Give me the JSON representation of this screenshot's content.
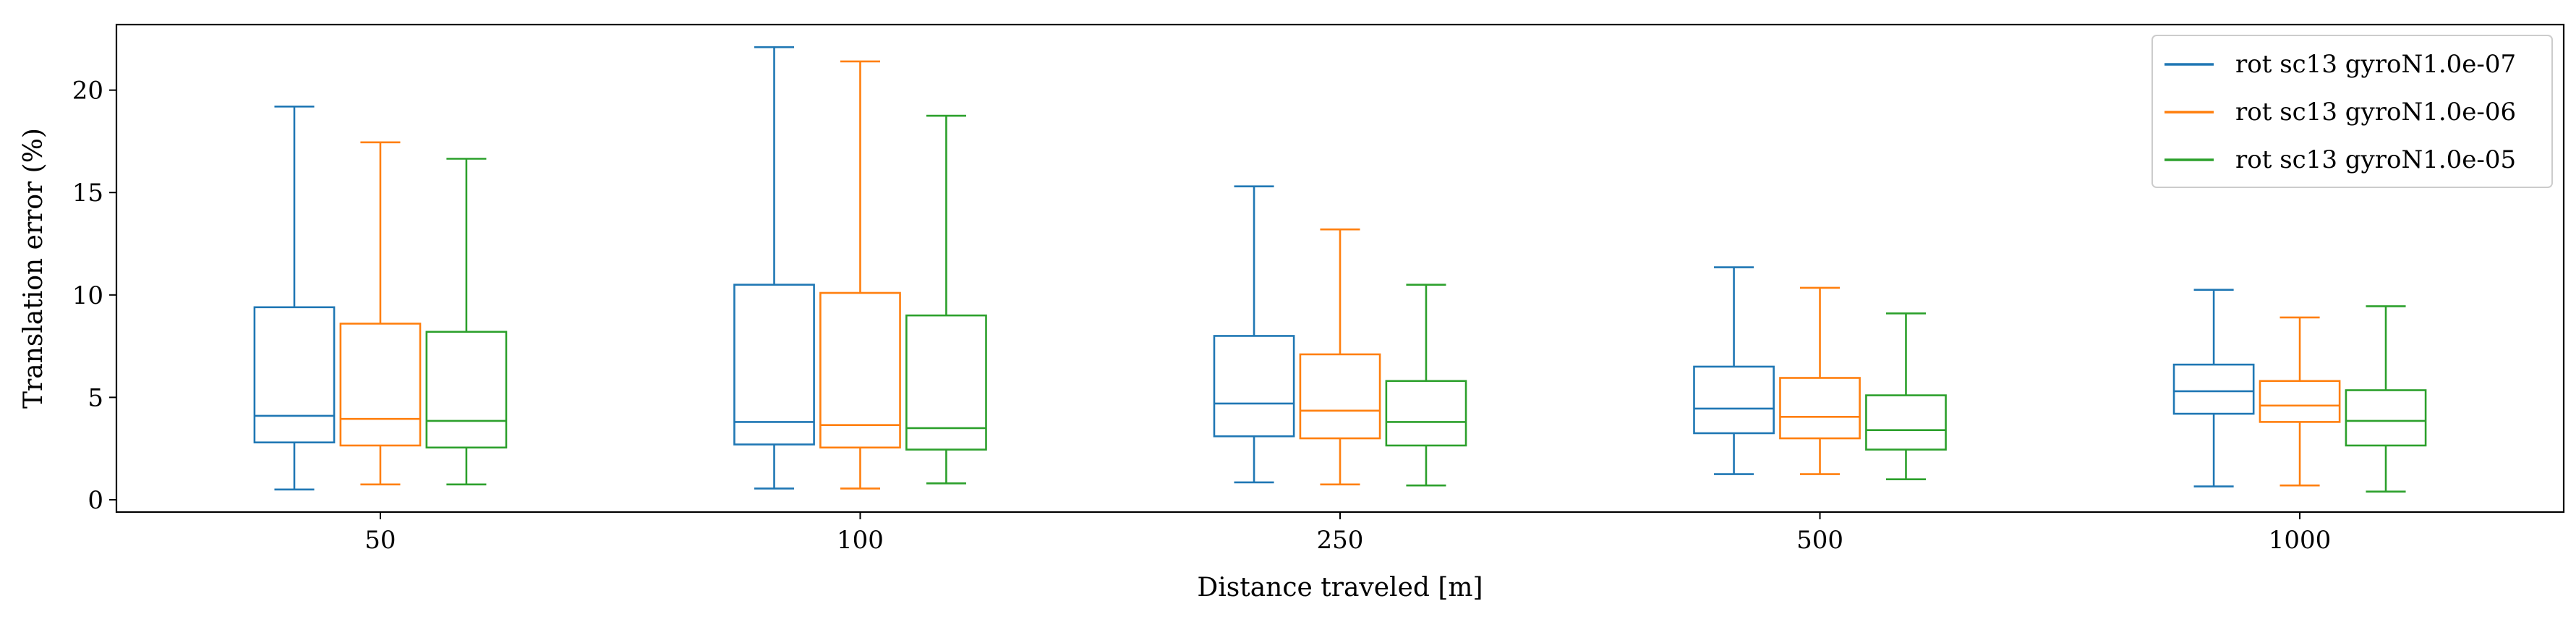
{
  "chart_data": {
    "type": "box",
    "xlabel": "Distance traveled [m]",
    "ylabel": "Translation error (%)",
    "categories": [
      "50",
      "100",
      "250",
      "500",
      "1000"
    ],
    "ylim": [
      -0.6,
      23.2
    ],
    "yticks": [
      0,
      5,
      10,
      15,
      20
    ],
    "grid": false,
    "legend_position": "top-right",
    "series": [
      {
        "name": "rot sc13 gyroN1.0e-07",
        "color": "#1f77b4",
        "boxes": [
          {
            "whislo": 0.5,
            "q1": 2.8,
            "med": 4.1,
            "q3": 9.4,
            "whishi": 19.2
          },
          {
            "whislo": 0.55,
            "q1": 2.7,
            "med": 3.8,
            "q3": 10.5,
            "whishi": 22.1
          },
          {
            "whislo": 0.85,
            "q1": 3.1,
            "med": 4.7,
            "q3": 8.0,
            "whishi": 15.3
          },
          {
            "whislo": 1.25,
            "q1": 3.25,
            "med": 4.45,
            "q3": 6.5,
            "whishi": 11.35
          },
          {
            "whislo": 0.65,
            "q1": 4.2,
            "med": 5.3,
            "q3": 6.6,
            "whishi": 10.25
          }
        ]
      },
      {
        "name": "rot sc13 gyroN1.0e-06",
        "color": "#ff7f0e",
        "boxes": [
          {
            "whislo": 0.75,
            "q1": 2.65,
            "med": 3.95,
            "q3": 8.6,
            "whishi": 17.45
          },
          {
            "whislo": 0.55,
            "q1": 2.55,
            "med": 3.65,
            "q3": 10.1,
            "whishi": 21.4
          },
          {
            "whislo": 0.75,
            "q1": 3.0,
            "med": 4.35,
            "q3": 7.1,
            "whishi": 13.2
          },
          {
            "whislo": 1.25,
            "q1": 3.0,
            "med": 4.05,
            "q3": 5.95,
            "whishi": 10.35
          },
          {
            "whislo": 0.7,
            "q1": 3.8,
            "med": 4.6,
            "q3": 5.8,
            "whishi": 8.9
          }
        ]
      },
      {
        "name": "rot sc13 gyroN1.0e-05",
        "color": "#2ca02c",
        "boxes": [
          {
            "whislo": 0.75,
            "q1": 2.55,
            "med": 3.85,
            "q3": 8.2,
            "whishi": 16.65
          },
          {
            "whislo": 0.8,
            "q1": 2.45,
            "med": 3.5,
            "q3": 9.0,
            "whishi": 18.75
          },
          {
            "whislo": 0.7,
            "q1": 2.65,
            "med": 3.8,
            "q3": 5.8,
            "whishi": 10.5
          },
          {
            "whislo": 1.0,
            "q1": 2.45,
            "med": 3.4,
            "q3": 5.1,
            "whishi": 9.1
          },
          {
            "whislo": 0.4,
            "q1": 2.65,
            "med": 3.85,
            "q3": 5.35,
            "whishi": 9.45
          }
        ]
      }
    ]
  }
}
